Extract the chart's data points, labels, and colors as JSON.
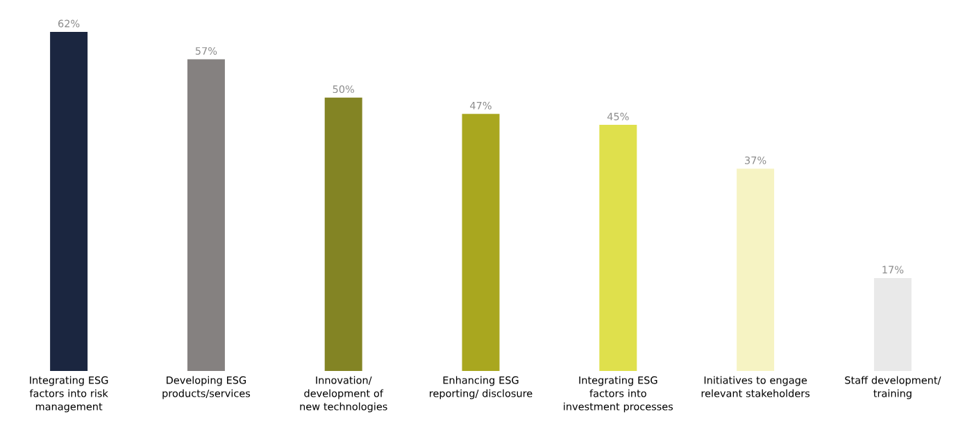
{
  "chart_data": {
    "type": "bar",
    "categories": [
      "Integrating ESG factors into risk management",
      "Developing ESG products/services",
      "Innovation/ development of new technologies",
      "Enhancing ESG reporting/ disclosure",
      "Integrating ESG factors into investment processes",
      "Initiatives to engage relevant stakeholders",
      "Staff development/ training"
    ],
    "values": [
      62,
      57,
      50,
      47,
      45,
      37,
      17
    ],
    "value_labels": [
      "62%",
      "57%",
      "50%",
      "47%",
      "45%",
      "37%",
      "17%"
    ],
    "colors": [
      "#1b2640",
      "#858180",
      "#838424",
      "#a9a71f",
      "#dfe04c",
      "#f6f3c3",
      "#e9e9e9"
    ],
    "ylim": [
      0,
      62
    ]
  }
}
